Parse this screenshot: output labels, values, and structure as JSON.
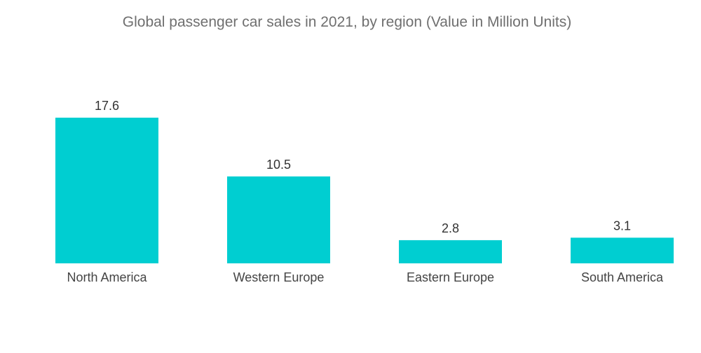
{
  "chart_data": {
    "type": "bar",
    "title": "Global passenger car sales in 2021, by region (Value in Million Units)",
    "categories": [
      "North America",
      "Western Europe",
      "Eastern Europe",
      "South America"
    ],
    "values": [
      17.6,
      10.5,
      2.8,
      3.1
    ],
    "value_labels": [
      "17.6",
      "10.5",
      "2.8",
      "3.1"
    ],
    "xlabel": "",
    "ylabel": "",
    "ylim": [
      0,
      17.6
    ],
    "grid": false,
    "legend": "none",
    "bar_color": "#00ced1"
  }
}
